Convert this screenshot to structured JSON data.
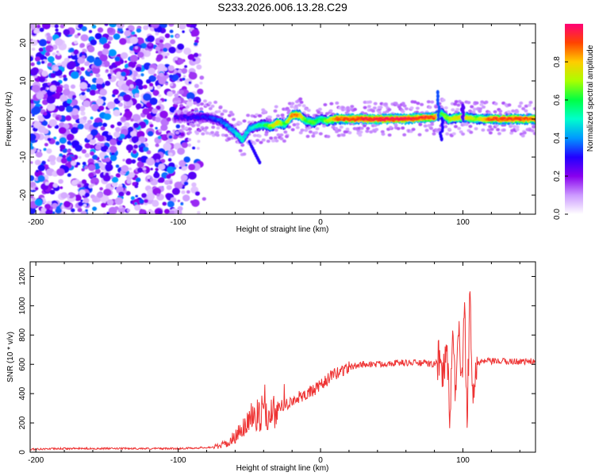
{
  "title": "S233.2026.006.13.28.C29",
  "chart_data": [
    {
      "type": "heatmap",
      "xlabel": "Height of straight line (km)",
      "ylabel": "Frequency (Hz)",
      "xlim": [
        -204,
        151
      ],
      "ylim": [
        -25,
        25
      ],
      "xticks": [
        -200,
        -100,
        0,
        100
      ],
      "yticks": [
        -20,
        -10,
        0,
        10,
        20
      ],
      "colorbar": {
        "label": "Normalized spectral amplitude",
        "range": [
          0,
          1
        ],
        "ticks": [
          "0.0",
          "0.2",
          "0.4",
          "0.6",
          "0.8"
        ],
        "colors": [
          "#ffffff",
          "#cc99ff",
          "#8800ee",
          "#2200ff",
          "#0099ff",
          "#00ffcc",
          "#00ff44",
          "#aaff00",
          "#ffcc00",
          "#ff4400",
          "#ff0077"
        ]
      },
      "ridge": {
        "x": [
          -100,
          -90,
          -80,
          -70,
          -60,
          -55,
          -50,
          -45,
          -40,
          -35,
          -30,
          -25,
          -20,
          -15,
          -10,
          -5,
          0,
          5,
          10,
          20,
          40,
          60,
          80,
          85,
          90,
          100,
          110,
          120,
          140,
          151
        ],
        "freq": [
          0.5,
          0.5,
          0.5,
          -0.5,
          -3.5,
          -5.5,
          -2.5,
          -2.0,
          -1.5,
          -2.0,
          -1.0,
          -1.5,
          1.0,
          1.0,
          -0.5,
          -1.0,
          0.0,
          -0.5,
          0.0,
          0.0,
          0.0,
          0.0,
          0.5,
          1.5,
          0.0,
          0.5,
          0.0,
          0.0,
          0.0,
          0.0
        ],
        "amplitude": [
          0.25,
          0.3,
          0.3,
          0.35,
          0.45,
          0.5,
          0.45,
          0.5,
          0.55,
          0.7,
          0.8,
          0.6,
          0.85,
          0.85,
          0.6,
          0.65,
          0.55,
          0.7,
          0.85,
          0.9,
          0.95,
          0.95,
          0.9,
          0.6,
          0.7,
          0.8,
          0.7,
          0.9,
          0.9,
          0.85
        ]
      },
      "noise_region": {
        "x": [
          -204,
          -80
        ],
        "amplitude": 0.3
      }
    },
    {
      "type": "line",
      "xlabel": "Height of straight line (km)",
      "ylabel": "SNR (10 * v/v)",
      "xlim": [
        -204,
        151
      ],
      "ylim": [
        0,
        1300
      ],
      "xticks": [
        -200,
        -100,
        0,
        100
      ],
      "yticks": [
        0,
        200,
        400,
        600,
        800,
        1000,
        1200
      ],
      "color": "#ee3333",
      "series": [
        {
          "name": "SNR",
          "x": [
            -204,
            -180,
            -150,
            -120,
            -100,
            -85,
            -75,
            -65,
            -60,
            -55,
            -50,
            -45,
            -40,
            -35,
            -30,
            -25,
            -20,
            -15,
            -10,
            -5,
            0,
            5,
            10,
            15,
            20,
            25,
            30,
            40,
            50,
            60,
            70,
            80,
            83,
            85,
            87,
            89,
            91,
            93,
            95,
            97,
            99,
            101,
            103,
            105,
            107,
            109,
            115,
            130,
            151
          ],
          "y": [
            20,
            25,
            25,
            25,
            25,
            30,
            35,
            60,
            110,
            160,
            220,
            250,
            250,
            270,
            300,
            330,
            350,
            380,
            400,
            420,
            450,
            500,
            530,
            560,
            580,
            590,
            600,
            600,
            610,
            610,
            610,
            600,
            620,
            600,
            550,
            700,
            200,
            800,
            300,
            900,
            400,
            1000,
            200,
            1100,
            400,
            600,
            620,
            620,
            620
          ]
        }
      ]
    }
  ]
}
